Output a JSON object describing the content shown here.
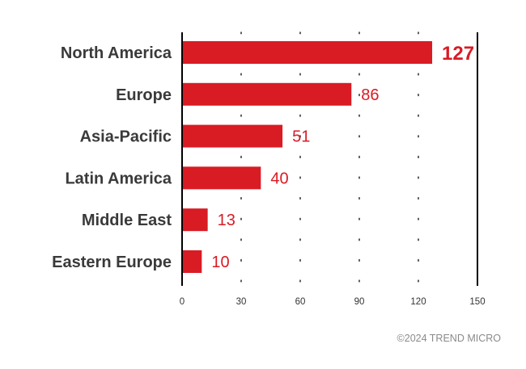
{
  "chart_data": {
    "type": "bar",
    "orientation": "horizontal",
    "categories": [
      "North America",
      "Europe",
      "Asia-Pacific",
      "Latin America",
      "Middle East",
      "Eastern Europe"
    ],
    "values": [
      127,
      86,
      51,
      40,
      13,
      10
    ],
    "value_labels": [
      "127",
      "86",
      "51",
      "40",
      "13",
      "10"
    ],
    "title": "",
    "xlabel": "",
    "ylabel": "",
    "xlim": [
      0,
      150
    ],
    "xticks": [
      0,
      30,
      60,
      90,
      120,
      150
    ],
    "grid": "dotted vertical",
    "legend": "none"
  },
  "colors": {
    "bar": "#d91b24",
    "value_text": "#d91b24",
    "category_text": "#3a3a3a",
    "axis": "#000000",
    "grid": "#333333"
  },
  "footer": {
    "copyright": "©2024 TREND MICRO"
  }
}
